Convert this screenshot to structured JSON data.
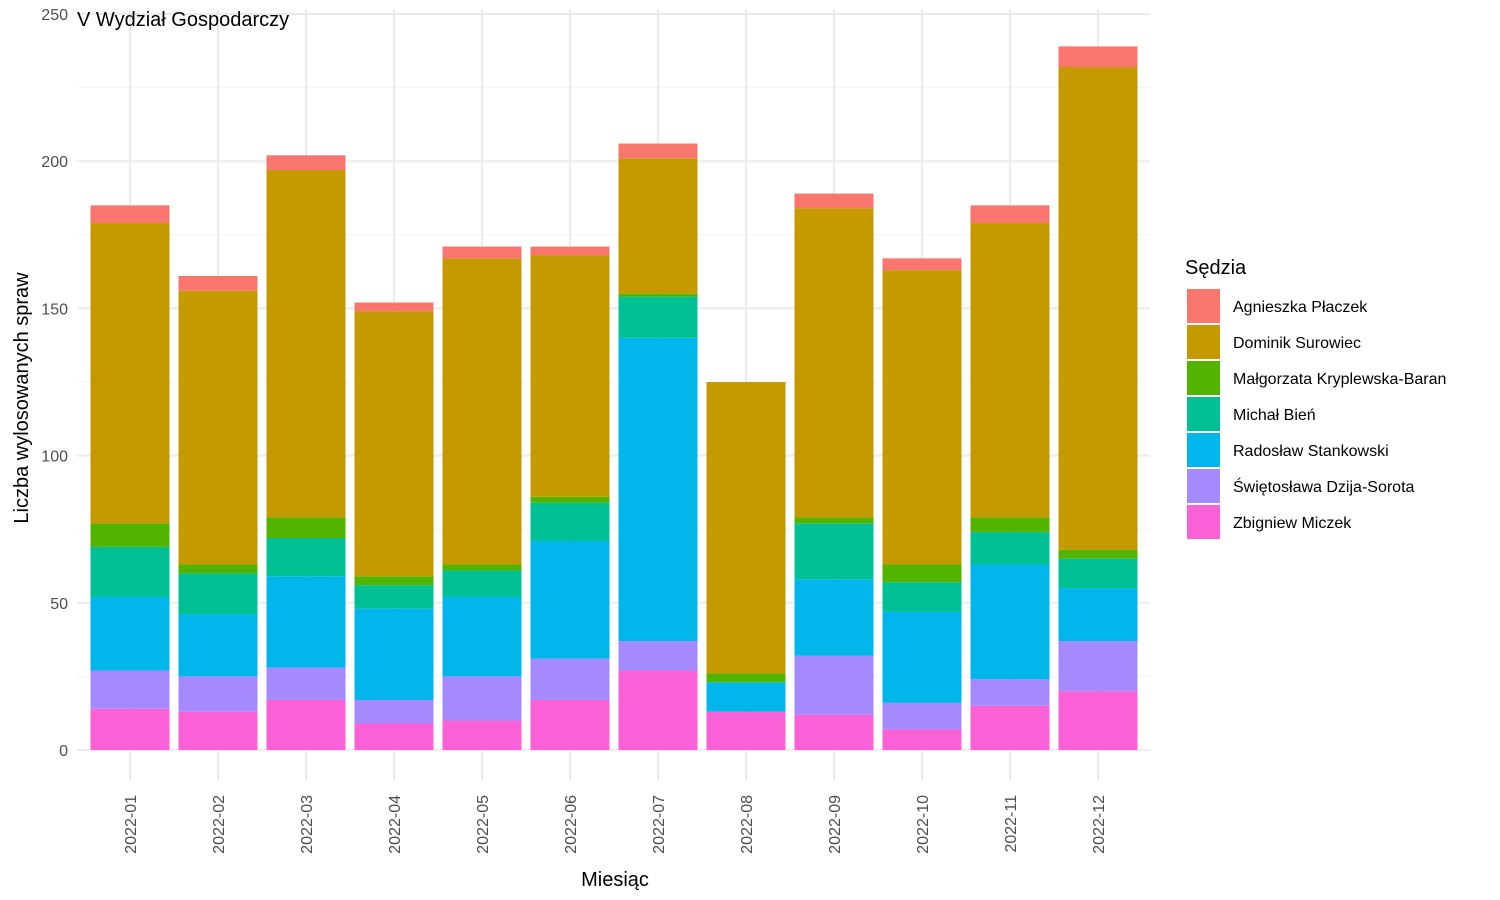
{
  "chart_data": {
    "type": "bar",
    "stacked": true,
    "title": "V Wydział Gospodarczy",
    "xlabel": "Miesiąc",
    "ylabel": "Liczba wylosowanych spraw",
    "ylim": [
      0,
      250
    ],
    "yticks": [
      0,
      50,
      100,
      150,
      200,
      250
    ],
    "grid": true,
    "legend_title": "Sędzia",
    "legend_position": "right",
    "categories": [
      "2022-01",
      "2022-02",
      "2022-03",
      "2022-04",
      "2022-05",
      "2022-06",
      "2022-07",
      "2022-08",
      "2022-09",
      "2022-10",
      "2022-11",
      "2022-12"
    ],
    "series": [
      {
        "name": "Zbigniew Miczek",
        "color": "#FB61D7",
        "values": [
          14,
          13,
          17,
          9,
          10,
          17,
          27,
          13,
          12,
          7,
          15,
          20
        ]
      },
      {
        "name": "Świętosława Dzija-Sorota",
        "color": "#A58AFF",
        "values": [
          13,
          12,
          11,
          8,
          15,
          14,
          10,
          0,
          20,
          9,
          9,
          17
        ]
      },
      {
        "name": "Radosław Stankowski",
        "color": "#00B6EB",
        "values": [
          25,
          21,
          31,
          31,
          27,
          40,
          103,
          10,
          26,
          31,
          39,
          18
        ]
      },
      {
        "name": "Michał Bień",
        "color": "#00C094",
        "values": [
          17,
          14,
          13,
          8,
          9,
          13,
          14,
          0,
          19,
          10,
          11,
          10
        ]
      },
      {
        "name": "Małgorzata Kryplewska-Baran",
        "color": "#53B400",
        "values": [
          8,
          3,
          7,
          3,
          2,
          2,
          1,
          3,
          2,
          6,
          5,
          3
        ]
      },
      {
        "name": "Dominik Surowiec",
        "color": "#C49A00",
        "values": [
          102,
          93,
          118,
          90,
          104,
          82,
          46,
          99,
          105,
          100,
          100,
          164
        ]
      },
      {
        "name": "Agnieszka Płaczek",
        "color": "#F8766D",
        "values": [
          6,
          5,
          5,
          3,
          4,
          3,
          5,
          0,
          5,
          4,
          6,
          7
        ]
      }
    ],
    "legend_order": [
      "Agnieszka Płaczek",
      "Dominik Surowiec",
      "Małgorzata Kryplewska-Baran",
      "Michał Bień",
      "Radosław Stankowski",
      "Świętosława Dzija-Sorota",
      "Zbigniew Miczek"
    ]
  }
}
